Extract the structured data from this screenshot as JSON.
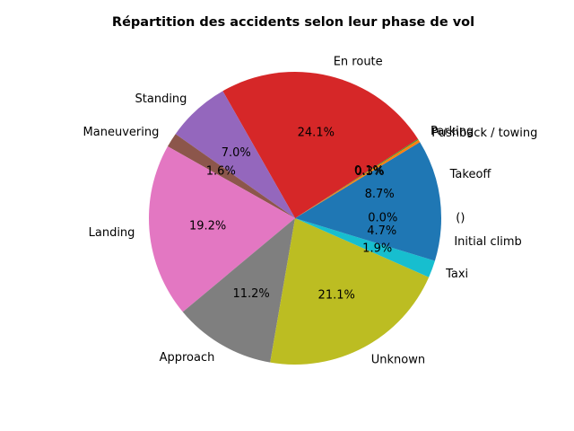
{
  "chart_data": {
    "type": "pie",
    "title": "Répartition des accidents selon leur phase de vol",
    "start_angle_deg": 0,
    "direction": "counterclockwise",
    "slices": [
      {
        "label": "()",
        "value": 0.0,
        "pct_label": "0.0%",
        "color": "#1f77b4"
      },
      {
        "label": "Takeoff",
        "value": 8.7,
        "pct_label": "8.7%",
        "color": "#1f77b4"
      },
      {
        "label": "Pushback / towing",
        "value": 0.3,
        "pct_label": "0.3%",
        "color": "#ff7f0e"
      },
      {
        "label": "Parking",
        "value": 0.1,
        "pct_label": "0.1%",
        "color": "#2ca02c"
      },
      {
        "label": "En route",
        "value": 24.1,
        "pct_label": "24.1%",
        "color": "#d62728"
      },
      {
        "label": "Standing",
        "value": 7.0,
        "pct_label": "7.0%",
        "color": "#9467bd"
      },
      {
        "label": "Maneuvering",
        "value": 1.6,
        "pct_label": "1.6%",
        "color": "#8c564b"
      },
      {
        "label": "Landing",
        "value": 19.2,
        "pct_label": "19.2%",
        "color": "#e377c2"
      },
      {
        "label": "Approach",
        "value": 11.2,
        "pct_label": "11.2%",
        "color": "#7f7f7f"
      },
      {
        "label": "Unknown",
        "value": 21.1,
        "pct_label": "21.1%",
        "color": "#bcbd22"
      },
      {
        "label": "Taxi",
        "value": 1.9,
        "pct_label": "1.9%",
        "color": "#17becf"
      },
      {
        "label": "Initial climb",
        "value": 4.7,
        "pct_label": "4.7%",
        "color": "#1f77b4"
      }
    ]
  }
}
